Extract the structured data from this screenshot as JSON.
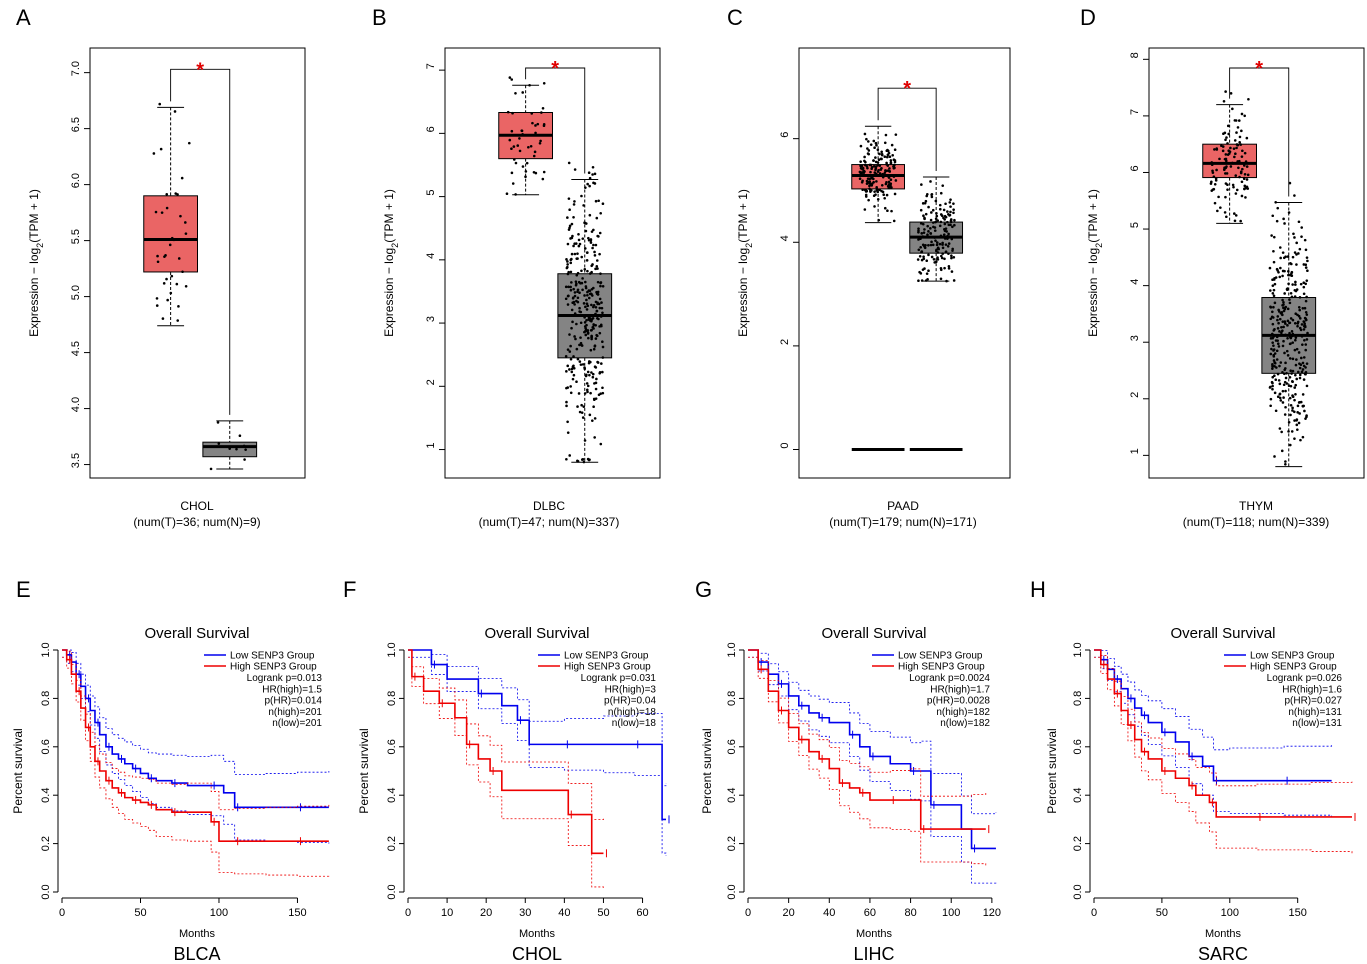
{
  "colors": {
    "tumor_box": "#ea6565",
    "normal_box": "#848484",
    "star": "#e00000",
    "low_line": "#0000ee",
    "high_line": "#ee0000"
  },
  "chart_data": [
    {
      "type": "box",
      "panel": "A",
      "ylabel": "Expression − log2(TPM + 1)",
      "category": "CHOL",
      "subtitle": "(num(T)=36; num(N)=9)",
      "yticks": [
        3.5,
        4.0,
        4.5,
        5.0,
        5.5,
        6.0,
        6.5,
        7.0
      ],
      "ylim": [
        3.38,
        7.22
      ],
      "significance": "*",
      "groups": [
        {
          "group": "T",
          "n": 36,
          "min": 4.74,
          "q1": 5.22,
          "median": 5.51,
          "q3": 5.9,
          "max": 6.69
        },
        {
          "group": "N",
          "n": 9,
          "min": 3.46,
          "q1": 3.57,
          "median": 3.66,
          "q3": 3.7,
          "max": 3.89
        }
      ]
    },
    {
      "type": "box",
      "panel": "B",
      "ylabel": "Expression − log2(TPM + 1)",
      "category": "DLBC",
      "subtitle": "(num(T)=47; num(N)=337)",
      "yticks": [
        1,
        2,
        3,
        4,
        5,
        6,
        7
      ],
      "ylim": [
        0.55,
        7.35
      ],
      "significance": "*",
      "groups": [
        {
          "group": "T",
          "n": 47,
          "min": 5.03,
          "q1": 5.6,
          "median": 5.97,
          "q3": 6.33,
          "max": 6.76
        },
        {
          "group": "N",
          "n": 337,
          "min": 0.8,
          "q1": 2.45,
          "median": 3.12,
          "q3": 3.78,
          "max": 5.27
        }
      ]
    },
    {
      "type": "box",
      "panel": "C",
      "ylabel": "Expression − log2(TPM + 1)",
      "category": "PAAD",
      "subtitle": "(num(T)=179; num(N)=171)",
      "yticks": [
        0,
        2,
        4,
        6
      ],
      "ylim": [
        -0.55,
        7.75
      ],
      "significance": "*",
      "groups": [
        {
          "group": "T",
          "n": 179,
          "min": 4.38,
          "q1": 5.03,
          "median": 5.29,
          "q3": 5.5,
          "max": 6.24,
          "zero_line": 0
        },
        {
          "group": "N",
          "n": 171,
          "min": 3.25,
          "q1": 3.79,
          "median": 4.1,
          "q3": 4.39,
          "max": 5.26,
          "zero_line": 0
        }
      ]
    },
    {
      "type": "box",
      "panel": "D",
      "ylabel": "Expression − log2(TPM + 1)",
      "category": "THYM",
      "subtitle": "(num(T)=118; num(N)=339)",
      "yticks": [
        1,
        2,
        3,
        4,
        5,
        6,
        7,
        8
      ],
      "ylim": [
        0.6,
        8.2
      ],
      "significance": "*",
      "groups": [
        {
          "group": "T",
          "n": 118,
          "min": 5.1,
          "q1": 5.91,
          "median": 6.16,
          "q3": 6.5,
          "max": 7.2
        },
        {
          "group": "N",
          "n": 339,
          "min": 0.8,
          "q1": 2.45,
          "median": 3.12,
          "q3": 3.79,
          "max": 5.47
        }
      ]
    },
    {
      "type": "line",
      "panel": "E",
      "title": "Overall Survival",
      "cancer": "BLCA",
      "xlabel": "Months",
      "ylabel": "Percent survival",
      "xticks": [
        0,
        50,
        100,
        150
      ],
      "yticks": [
        0.0,
        0.2,
        0.4,
        0.6,
        0.8,
        1.0
      ],
      "xlim": [
        0,
        172
      ],
      "legend": [
        "Low SENP3 Group",
        "High SENP3 Group"
      ],
      "stats": [
        "Logrank p=0.013",
        "HR(high)=1.5",
        "p(HR)=0.014",
        "n(high)=201",
        "n(low)=201"
      ],
      "series": [
        {
          "name": "Low SENP3 Group",
          "x": [
            0,
            3,
            6,
            9,
            12,
            15,
            18,
            21,
            24,
            28,
            32,
            36,
            40,
            45,
            50,
            55,
            60,
            70,
            80,
            95,
            103,
            110,
            130,
            150,
            170
          ],
          "y": [
            1.0,
            0.98,
            0.95,
            0.9,
            0.85,
            0.8,
            0.75,
            0.7,
            0.65,
            0.6,
            0.57,
            0.55,
            0.53,
            0.51,
            0.49,
            0.47,
            0.46,
            0.45,
            0.44,
            0.44,
            0.41,
            0.35,
            0.35,
            0.35,
            0.35
          ]
        },
        {
          "name": "High SENP3 Group",
          "x": [
            0,
            3,
            6,
            9,
            12,
            15,
            18,
            21,
            24,
            28,
            32,
            36,
            40,
            45,
            50,
            55,
            60,
            70,
            80,
            95,
            100,
            110,
            130,
            150,
            170
          ],
          "y": [
            1.0,
            0.96,
            0.9,
            0.83,
            0.76,
            0.68,
            0.6,
            0.54,
            0.5,
            0.46,
            0.43,
            0.41,
            0.39,
            0.38,
            0.37,
            0.36,
            0.34,
            0.33,
            0.33,
            0.29,
            0.21,
            0.21,
            0.21,
            0.21,
            0.21
          ]
        }
      ]
    },
    {
      "type": "line",
      "panel": "F",
      "title": "Overall Survival",
      "cancer": "CHOL",
      "xlabel": "Months",
      "ylabel": "Percent survival",
      "xticks": [
        0,
        10,
        20,
        30,
        40,
        50,
        60
      ],
      "yticks": [
        0.0,
        0.2,
        0.4,
        0.6,
        0.8,
        1.0
      ],
      "xlim": [
        0,
        66
      ],
      "legend": [
        "Low SENP3 Group",
        "High SENP3 Group"
      ],
      "stats": [
        "Logrank p=0.031",
        "HR(high)=3",
        "p(HR)=0.04",
        "n(high)=18",
        "n(low)=18"
      ],
      "series": [
        {
          "name": "Low SENP3 Group",
          "x": [
            0,
            6,
            10,
            18,
            24,
            28,
            31,
            40,
            50,
            58,
            65,
            66
          ],
          "y": [
            1.0,
            0.94,
            0.88,
            0.82,
            0.77,
            0.71,
            0.61,
            0.61,
            0.61,
            0.61,
            0.3,
            0.3
          ]
        },
        {
          "name": "High SENP3 Group",
          "x": [
            0,
            1,
            4,
            8,
            12,
            15,
            18,
            21,
            24,
            41,
            47,
            50
          ],
          "y": [
            1.0,
            0.89,
            0.83,
            0.78,
            0.72,
            0.61,
            0.55,
            0.5,
            0.42,
            0.32,
            0.16,
            0.16
          ]
        }
      ]
    },
    {
      "type": "line",
      "panel": "G",
      "title": "Overall Survival",
      "cancer": "LIHC",
      "xlabel": "Months",
      "ylabel": "Percent survival",
      "xticks": [
        0,
        20,
        40,
        60,
        80,
        100,
        120
      ],
      "yticks": [
        0.0,
        0.2,
        0.4,
        0.6,
        0.8,
        1.0
      ],
      "xlim": [
        0,
        124
      ],
      "legend": [
        "Low SENP3 Group",
        "High SENP3 Group"
      ],
      "stats": [
        "Logrank p=0.0024",
        "HR(high)=1.7",
        "p(HR)=0.0028",
        "n(high)=182",
        "n(low)=182"
      ],
      "series": [
        {
          "name": "Low SENP3 Group",
          "x": [
            0,
            5,
            10,
            15,
            20,
            25,
            30,
            35,
            40,
            50,
            55,
            60,
            70,
            80,
            85,
            90,
            105,
            110,
            122
          ],
          "y": [
            1.0,
            0.95,
            0.9,
            0.86,
            0.81,
            0.77,
            0.74,
            0.72,
            0.7,
            0.65,
            0.6,
            0.56,
            0.53,
            0.5,
            0.5,
            0.36,
            0.26,
            0.18,
            0.18
          ]
        },
        {
          "name": "High SENP3 Group",
          "x": [
            0,
            5,
            10,
            15,
            20,
            25,
            30,
            35,
            40,
            45,
            50,
            55,
            60,
            70,
            80,
            85,
            110,
            117
          ],
          "y": [
            1.0,
            0.92,
            0.83,
            0.75,
            0.68,
            0.63,
            0.58,
            0.55,
            0.51,
            0.45,
            0.43,
            0.41,
            0.38,
            0.38,
            0.38,
            0.26,
            0.26,
            0.26
          ]
        }
      ]
    },
    {
      "type": "line",
      "panel": "H",
      "title": "Overall Survival",
      "cancer": "SARC",
      "xlabel": "Months",
      "ylabel": "Percent survival",
      "xticks": [
        0,
        50,
        100,
        150
      ],
      "yticks": [
        0.0,
        0.2,
        0.4,
        0.6,
        0.8,
        1.0
      ],
      "xlim": [
        0,
        190
      ],
      "legend": [
        "Low SENP3 Group",
        "High SENP3 Group"
      ],
      "stats": [
        "Logrank p=0.026",
        "HR(high)=1.6",
        "p(HR)=0.027",
        "n(high)=131",
        "n(low)=131"
      ],
      "series": [
        {
          "name": "Low SENP3 Group",
          "x": [
            0,
            5,
            10,
            15,
            20,
            25,
            30,
            35,
            40,
            50,
            60,
            70,
            80,
            88,
            100,
            140,
            175
          ],
          "y": [
            1.0,
            0.96,
            0.92,
            0.88,
            0.84,
            0.8,
            0.76,
            0.73,
            0.7,
            0.66,
            0.62,
            0.56,
            0.52,
            0.46,
            0.46,
            0.46,
            0.46
          ]
        },
        {
          "name": "High SENP3 Group",
          "x": [
            0,
            5,
            10,
            15,
            20,
            25,
            30,
            35,
            40,
            50,
            60,
            70,
            75,
            85,
            90,
            120,
            160,
            190
          ],
          "y": [
            1.0,
            0.94,
            0.88,
            0.82,
            0.75,
            0.69,
            0.63,
            0.58,
            0.55,
            0.5,
            0.47,
            0.44,
            0.4,
            0.37,
            0.31,
            0.31,
            0.31,
            0.31
          ]
        }
      ]
    }
  ]
}
